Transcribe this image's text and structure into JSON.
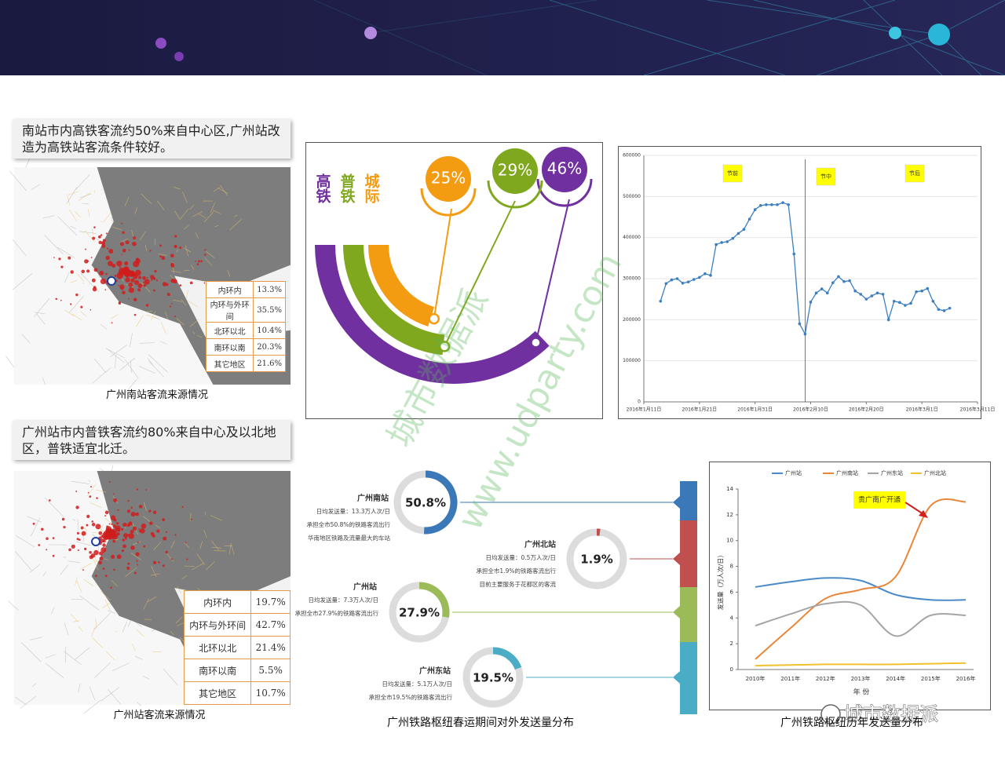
{
  "slide": {
    "blocks": [
      {
        "heading": "南站市内高铁客流约50%来自中心区,广州站改造为高铁站客流条件较好。",
        "table": [
          [
            "内环内",
            "13.3%"
          ],
          [
            "内环与外环间",
            "35.5%"
          ],
          [
            "北环以北",
            "10.4%"
          ],
          [
            "南环以南",
            "20.3%"
          ],
          [
            "其它地区",
            "21.6%"
          ]
        ],
        "caption": "广州南站客流来源情况"
      },
      {
        "heading": "广州站市内普铁客流约80%来自中心及以北地区，普铁适宜北迁。",
        "table": [
          [
            "内环内",
            "19.7%"
          ],
          [
            "内环与外环间",
            "42.7%"
          ],
          [
            "北环以北",
            "21.4%"
          ],
          [
            "南环以南",
            "5.5%"
          ],
          [
            "其它地区",
            "10.7%"
          ]
        ],
        "caption": "广州站客流来源情况"
      }
    ]
  },
  "chart_data": [
    {
      "type": "arc",
      "categories": [
        "高铁",
        "普铁",
        "城际"
      ],
      "values": [
        46,
        29,
        25
      ],
      "value_labels": [
        "46%",
        "29%",
        "25%"
      ],
      "colors": [
        "#7030a0",
        "#7fa81e",
        "#f39c12"
      ]
    },
    {
      "type": "line",
      "x": [
        "2016-01-14",
        "2016-01-15",
        "2016-01-16",
        "2016-01-17",
        "2016-01-18",
        "2016-01-19",
        "2016-01-20",
        "2016-01-21",
        "2016-01-22",
        "2016-01-23",
        "2016-01-24",
        "2016-01-25",
        "2016-01-26",
        "2016-01-27",
        "2016-01-28",
        "2016-01-29",
        "2016-01-30",
        "2016-01-31",
        "2016-02-01",
        "2016-02-02",
        "2016-02-03",
        "2016-02-04",
        "2016-02-05",
        "2016-02-06",
        "2016-02-07",
        "2016-02-08",
        "2016-02-09",
        "2016-02-10",
        "2016-02-11",
        "2016-02-12",
        "2016-02-13",
        "2016-02-14",
        "2016-02-15",
        "2016-02-16",
        "2016-02-17",
        "2016-02-18",
        "2016-02-19",
        "2016-02-20",
        "2016-02-21",
        "2016-02-22",
        "2016-02-23",
        "2016-02-24",
        "2016-02-25",
        "2016-02-26",
        "2016-02-27",
        "2016-02-28",
        "2016-02-29",
        "2016-03-01",
        "2016-03-02",
        "2016-03-03",
        "2016-03-04",
        "2016-03-05",
        "2016-03-06"
      ],
      "values": [
        245000,
        288000,
        297000,
        300000,
        289000,
        292000,
        298000,
        303000,
        312000,
        308000,
        383000,
        388000,
        390000,
        398000,
        410000,
        420000,
        445000,
        468000,
        478000,
        480000,
        480000,
        480000,
        485000,
        480000,
        360000,
        190000,
        165000,
        243000,
        265000,
        275000,
        265000,
        290000,
        305000,
        293000,
        295000,
        270000,
        262000,
        250000,
        258000,
        265000,
        262000,
        200000,
        245000,
        242000,
        235000,
        240000,
        268000,
        270000,
        276000,
        245000,
        225000,
        222000,
        228000
      ],
      "color": "#3c7fc0",
      "xlim": [
        "2016-01-11",
        "2016-03-11"
      ],
      "xticks": [
        {
          "value": "2016-01-11",
          "label": "2016年1月11日"
        },
        {
          "value": "2016-01-21",
          "label": "2016年1月21日"
        },
        {
          "value": "2016-01-31",
          "label": "2016年1月31日"
        },
        {
          "value": "2016-02-10",
          "label": "2016年2月10日"
        },
        {
          "value": "2016-02-20",
          "label": "2016年2月20日"
        },
        {
          "value": "2016-03-01",
          "label": "2016年3月1日"
        },
        {
          "value": "2016-03-11",
          "label": "2016年3月11日"
        }
      ],
      "ylim": [
        0,
        600000
      ],
      "yticks": [
        0,
        100000,
        200000,
        300000,
        400000,
        500000,
        600000
      ],
      "grid": true,
      "divider": "2016-02-09",
      "annotations": [
        "节前",
        "节中",
        "节后"
      ]
    },
    {
      "type": "donut",
      "categories": [
        "广州南站",
        "广州北站",
        "广州站",
        "广州东站"
      ],
      "values": [
        50.8,
        1.9,
        27.9,
        19.5
      ],
      "value_labels": [
        "50.8%",
        "1.9%",
        "27.9%",
        "19.5%"
      ],
      "colors": [
        "#3a78b8",
        "#c0504d",
        "#9bbb59",
        "#4bacc6"
      ],
      "notes": [
        [
          "日均发送量：13.3万人次/日",
          "承担全市50.8%的铁路客流出行",
          "华南地区铁路及流量最大的车站"
        ],
        [
          "日均发送量：0.5万人次/日",
          "承担全市1.9%的铁路客流出行",
          "目前主要服务于花都区的客流"
        ],
        [
          "日均发送量：7.3万人次/日",
          "承担全市27.9%的铁路客流出行"
        ],
        [
          "日均发送量：5.1万人次/日",
          "承担全市19.5%的铁路客流出行"
        ]
      ],
      "caption": "广州铁路枢纽春运期间对外发送量分布"
    },
    {
      "type": "line_multi",
      "categories": [
        "2010年",
        "2011年",
        "2012年",
        "2013年",
        "2014年",
        "2015年",
        "2016年"
      ],
      "series": [
        {
          "name": "广州站",
          "color": "#4a8ac8",
          "values": [
            6.4,
            6.8,
            7.1,
            6.9,
            5.8,
            5.4,
            5.4
          ]
        },
        {
          "name": "广州南站",
          "color": "#e8863a",
          "values": [
            0.8,
            3.2,
            5.5,
            6.2,
            7.2,
            12.7,
            13.0
          ]
        },
        {
          "name": "广州东站",
          "color": "#a5a5a5",
          "values": [
            3.4,
            4.3,
            5.1,
            5.0,
            2.6,
            4.2,
            4.2
          ]
        },
        {
          "name": "广州北站",
          "color": "#f2c12e",
          "values": [
            0.3,
            0.35,
            0.4,
            0.4,
            0.4,
            0.45,
            0.5
          ]
        }
      ],
      "ylim": [
        0,
        14
      ],
      "yticks": [
        0,
        2,
        4,
        6,
        8,
        10,
        12,
        14
      ],
      "grid": false,
      "ylabel": "发送量（万人次/日）",
      "xlabel": "年 份",
      "annotation": "贵广南广开通",
      "caption": "广州铁路枢纽历年发送量分布"
    }
  ],
  "watermark": [
    "城市数据派",
    "www.udparty.com"
  ],
  "logo": "城市数据派"
}
